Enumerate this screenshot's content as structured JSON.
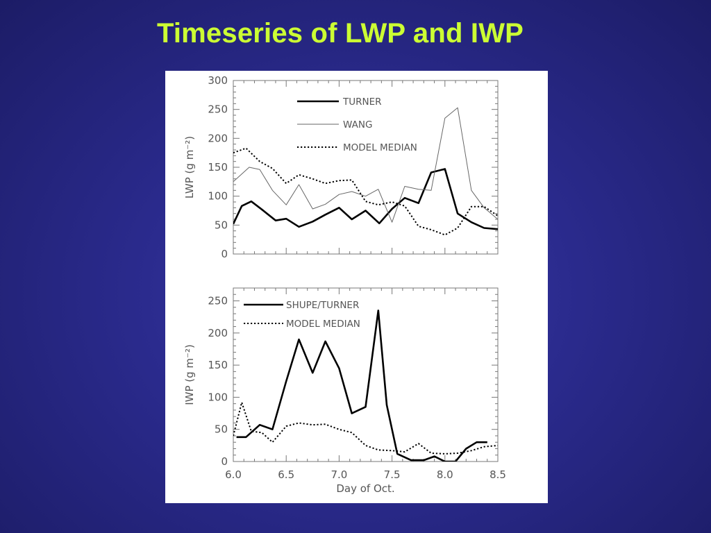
{
  "slide": {
    "title": "Timeseries of LWP and IWP"
  },
  "chart_data": [
    {
      "type": "line",
      "ylabel": "LWP (g m⁻²)",
      "xlabel": "",
      "xlim": [
        6.0,
        8.5
      ],
      "ylim": [
        0,
        300
      ],
      "yticks": [
        0,
        50,
        100,
        150,
        200,
        250,
        300
      ],
      "legend_position": "top-center",
      "series": [
        {
          "name": "TURNER",
          "style": "thick-solid",
          "color": "#000000",
          "x": [
            6.0,
            6.08,
            6.17,
            6.27,
            6.4,
            6.5,
            6.62,
            6.75,
            6.87,
            7.0,
            7.12,
            7.25,
            7.38,
            7.5,
            7.62,
            7.75,
            7.87,
            8.0,
            8.12,
            8.25,
            8.37,
            8.5
          ],
          "y": [
            52,
            83,
            91,
            77,
            58,
            61,
            47,
            56,
            68,
            80,
            60,
            75,
            53,
            78,
            97,
            88,
            141,
            147,
            70,
            55,
            45,
            43
          ]
        },
        {
          "name": "WANG",
          "style": "thin-solid",
          "color": "#666666",
          "x": [
            6.0,
            6.15,
            6.25,
            6.37,
            6.5,
            6.62,
            6.75,
            6.87,
            7.0,
            7.12,
            7.25,
            7.37,
            7.5,
            7.62,
            7.75,
            7.87,
            8.0,
            8.12,
            8.25,
            8.37,
            8.5
          ],
          "y": [
            125,
            150,
            146,
            110,
            85,
            120,
            78,
            86,
            103,
            108,
            100,
            112,
            55,
            117,
            112,
            110,
            235,
            253,
            110,
            80,
            60
          ]
        },
        {
          "name": "MODEL MEDIAN",
          "style": "dotted",
          "color": "#000000",
          "x": [
            6.0,
            6.12,
            6.25,
            6.37,
            6.5,
            6.62,
            6.75,
            6.87,
            7.0,
            7.12,
            7.25,
            7.37,
            7.5,
            7.62,
            7.75,
            7.87,
            8.0,
            8.12,
            8.25,
            8.37,
            8.5
          ],
          "y": [
            175,
            183,
            160,
            148,
            122,
            137,
            130,
            122,
            127,
            128,
            91,
            85,
            90,
            83,
            48,
            42,
            33,
            45,
            82,
            82,
            66
          ]
        }
      ]
    },
    {
      "type": "line",
      "ylabel": "IWP (g m⁻²)",
      "xlabel": "Day of Oct.",
      "xlim": [
        6.0,
        8.5
      ],
      "ylim": [
        0,
        270
      ],
      "xticks": [
        "6.0",
        "6.5",
        "7.0",
        "7.5",
        "8.0",
        "8.5"
      ],
      "yticks": [
        0,
        50,
        100,
        150,
        200,
        250
      ],
      "legend_position": "top-left",
      "series": [
        {
          "name": "SHUPE/TURNER",
          "style": "thick-solid",
          "color": "#000000",
          "x": [
            6.03,
            6.12,
            6.25,
            6.37,
            6.5,
            6.62,
            6.75,
            6.87,
            7.0,
            7.12,
            7.25,
            7.37,
            7.45,
            7.55,
            7.68,
            7.8,
            7.9,
            8.0,
            8.1,
            8.2,
            8.3,
            8.4
          ],
          "y": [
            38,
            38,
            57,
            50,
            125,
            190,
            138,
            187,
            145,
            75,
            85,
            235,
            88,
            12,
            2,
            2,
            8,
            0,
            0,
            20,
            30,
            30
          ]
        },
        {
          "name": "MODEL MEDIAN",
          "style": "dotted",
          "color": "#000000",
          "x": [
            6.0,
            6.08,
            6.17,
            6.27,
            6.37,
            6.5,
            6.62,
            6.75,
            6.87,
            7.0,
            7.12,
            7.25,
            7.37,
            7.5,
            7.62,
            7.75,
            7.87,
            8.0,
            8.12,
            8.25,
            8.37,
            8.5
          ],
          "y": [
            40,
            92,
            47,
            45,
            30,
            55,
            60,
            57,
            58,
            50,
            45,
            25,
            18,
            17,
            15,
            28,
            13,
            12,
            13,
            17,
            23,
            25
          ]
        }
      ]
    }
  ]
}
